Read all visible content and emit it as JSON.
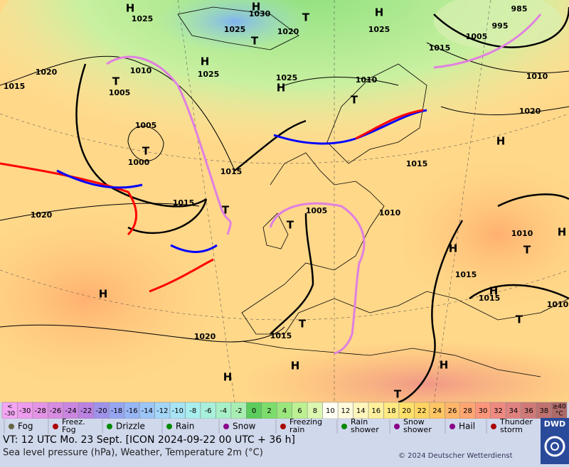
{
  "map": {
    "labels": [
      "H",
      "1025",
      "H",
      "1030",
      "1025",
      "T",
      "1020",
      "T",
      "H",
      "1025",
      "985",
      "1005",
      "995",
      "1015",
      "1020",
      "1015",
      "H",
      "1025",
      "1010",
      "T",
      "1005",
      "1025",
      "H",
      "1010",
      "T",
      "1020",
      "1010",
      "1005",
      "T",
      "1000",
      "1015",
      "H",
      "1015",
      "1015",
      "T",
      "1005",
      "T",
      "1010",
      "1020",
      "H",
      "T",
      "1010",
      "H",
      "1015",
      "H",
      "1015",
      "H",
      "1020",
      "1015",
      "T",
      "H",
      "H",
      "H",
      "T",
      "T",
      "1010"
    ]
  },
  "color_scale": [
    {
      "top": "<",
      "bottom": "-30",
      "color": "#f4a6f4"
    },
    {
      "bottom": "-30",
      "color": "#ee9cee"
    },
    {
      "bottom": "-28",
      "color": "#e494e6"
    },
    {
      "bottom": "-26",
      "color": "#d88ce2"
    },
    {
      "bottom": "-24",
      "color": "#ca86e0"
    },
    {
      "bottom": "-22",
      "color": "#bb82e2"
    },
    {
      "bottom": "-20",
      "color": "#9f92ea"
    },
    {
      "bottom": "-18",
      "color": "#97a6f2"
    },
    {
      "bottom": "-16",
      "color": "#97b6f6"
    },
    {
      "bottom": "-14",
      "color": "#9cc6f8"
    },
    {
      "bottom": "-12",
      "color": "#a4d6f8"
    },
    {
      "bottom": "-10",
      "color": "#a6e4f6"
    },
    {
      "bottom": "-8",
      "color": "#a8eeee"
    },
    {
      "bottom": "-6",
      "color": "#a8f0dc"
    },
    {
      "bottom": "-4",
      "color": "#a8f0c8"
    },
    {
      "bottom": "-2",
      "color": "#a8eeb2"
    },
    {
      "bottom": "0",
      "color": "#5ccc5c"
    },
    {
      "bottom": "2",
      "color": "#7cdc6c"
    },
    {
      "bottom": "4",
      "color": "#9ce67e"
    },
    {
      "bottom": "6",
      "color": "#bcf092"
    },
    {
      "bottom": "8",
      "color": "#dcf8b0"
    },
    {
      "bottom": "10",
      "color": "#fffff4"
    },
    {
      "bottom": "12",
      "color": "#fffbdc"
    },
    {
      "bottom": "14",
      "color": "#fff6bc"
    },
    {
      "bottom": "16",
      "color": "#fff09e"
    },
    {
      "bottom": "18",
      "color": "#ffea82"
    },
    {
      "bottom": "20",
      "color": "#ffe06a"
    },
    {
      "bottom": "22",
      "color": "#ffd462"
    },
    {
      "bottom": "24",
      "color": "#ffc664"
    },
    {
      "bottom": "26",
      "color": "#ffb66a"
    },
    {
      "bottom": "28",
      "color": "#ffa672"
    },
    {
      "bottom": "30",
      "color": "#fc967a"
    },
    {
      "bottom": "32",
      "color": "#ef8a80"
    },
    {
      "bottom": "34",
      "color": "#df8280"
    },
    {
      "bottom": "36",
      "color": "#cf7a78"
    },
    {
      "bottom": "38",
      "color": "#bf7270"
    },
    {
      "top": "≥40",
      "bottom": "°C",
      "color": "#ad6a68"
    }
  ],
  "legend": [
    {
      "lines": [
        "Fog"
      ]
    },
    {
      "lines": [
        "Freez.",
        "Fog"
      ]
    },
    {
      "lines": [
        "Drizzle"
      ]
    },
    {
      "lines": [
        "Rain"
      ]
    },
    {
      "lines": [
        "Snow"
      ]
    },
    {
      "lines": [
        "Freezing",
        "rain"
      ]
    },
    {
      "lines": [
        "Rain",
        "shower"
      ]
    },
    {
      "lines": [
        "Snow",
        "shower"
      ]
    },
    {
      "lines": [
        "Hail"
      ]
    },
    {
      "lines": [
        "Thunder",
        "storm"
      ]
    }
  ],
  "info": {
    "line1": "VT: 12 UTC Mo.  23 Sept. [ICON 2024-09-22  00 UTC + 36 h]",
    "line2": "Sea level pressure (hPa), Weather, Temperature 2m (°C)",
    "copyright": "© 2024 Deutscher Wetterdienst",
    "logo": "DWD"
  }
}
